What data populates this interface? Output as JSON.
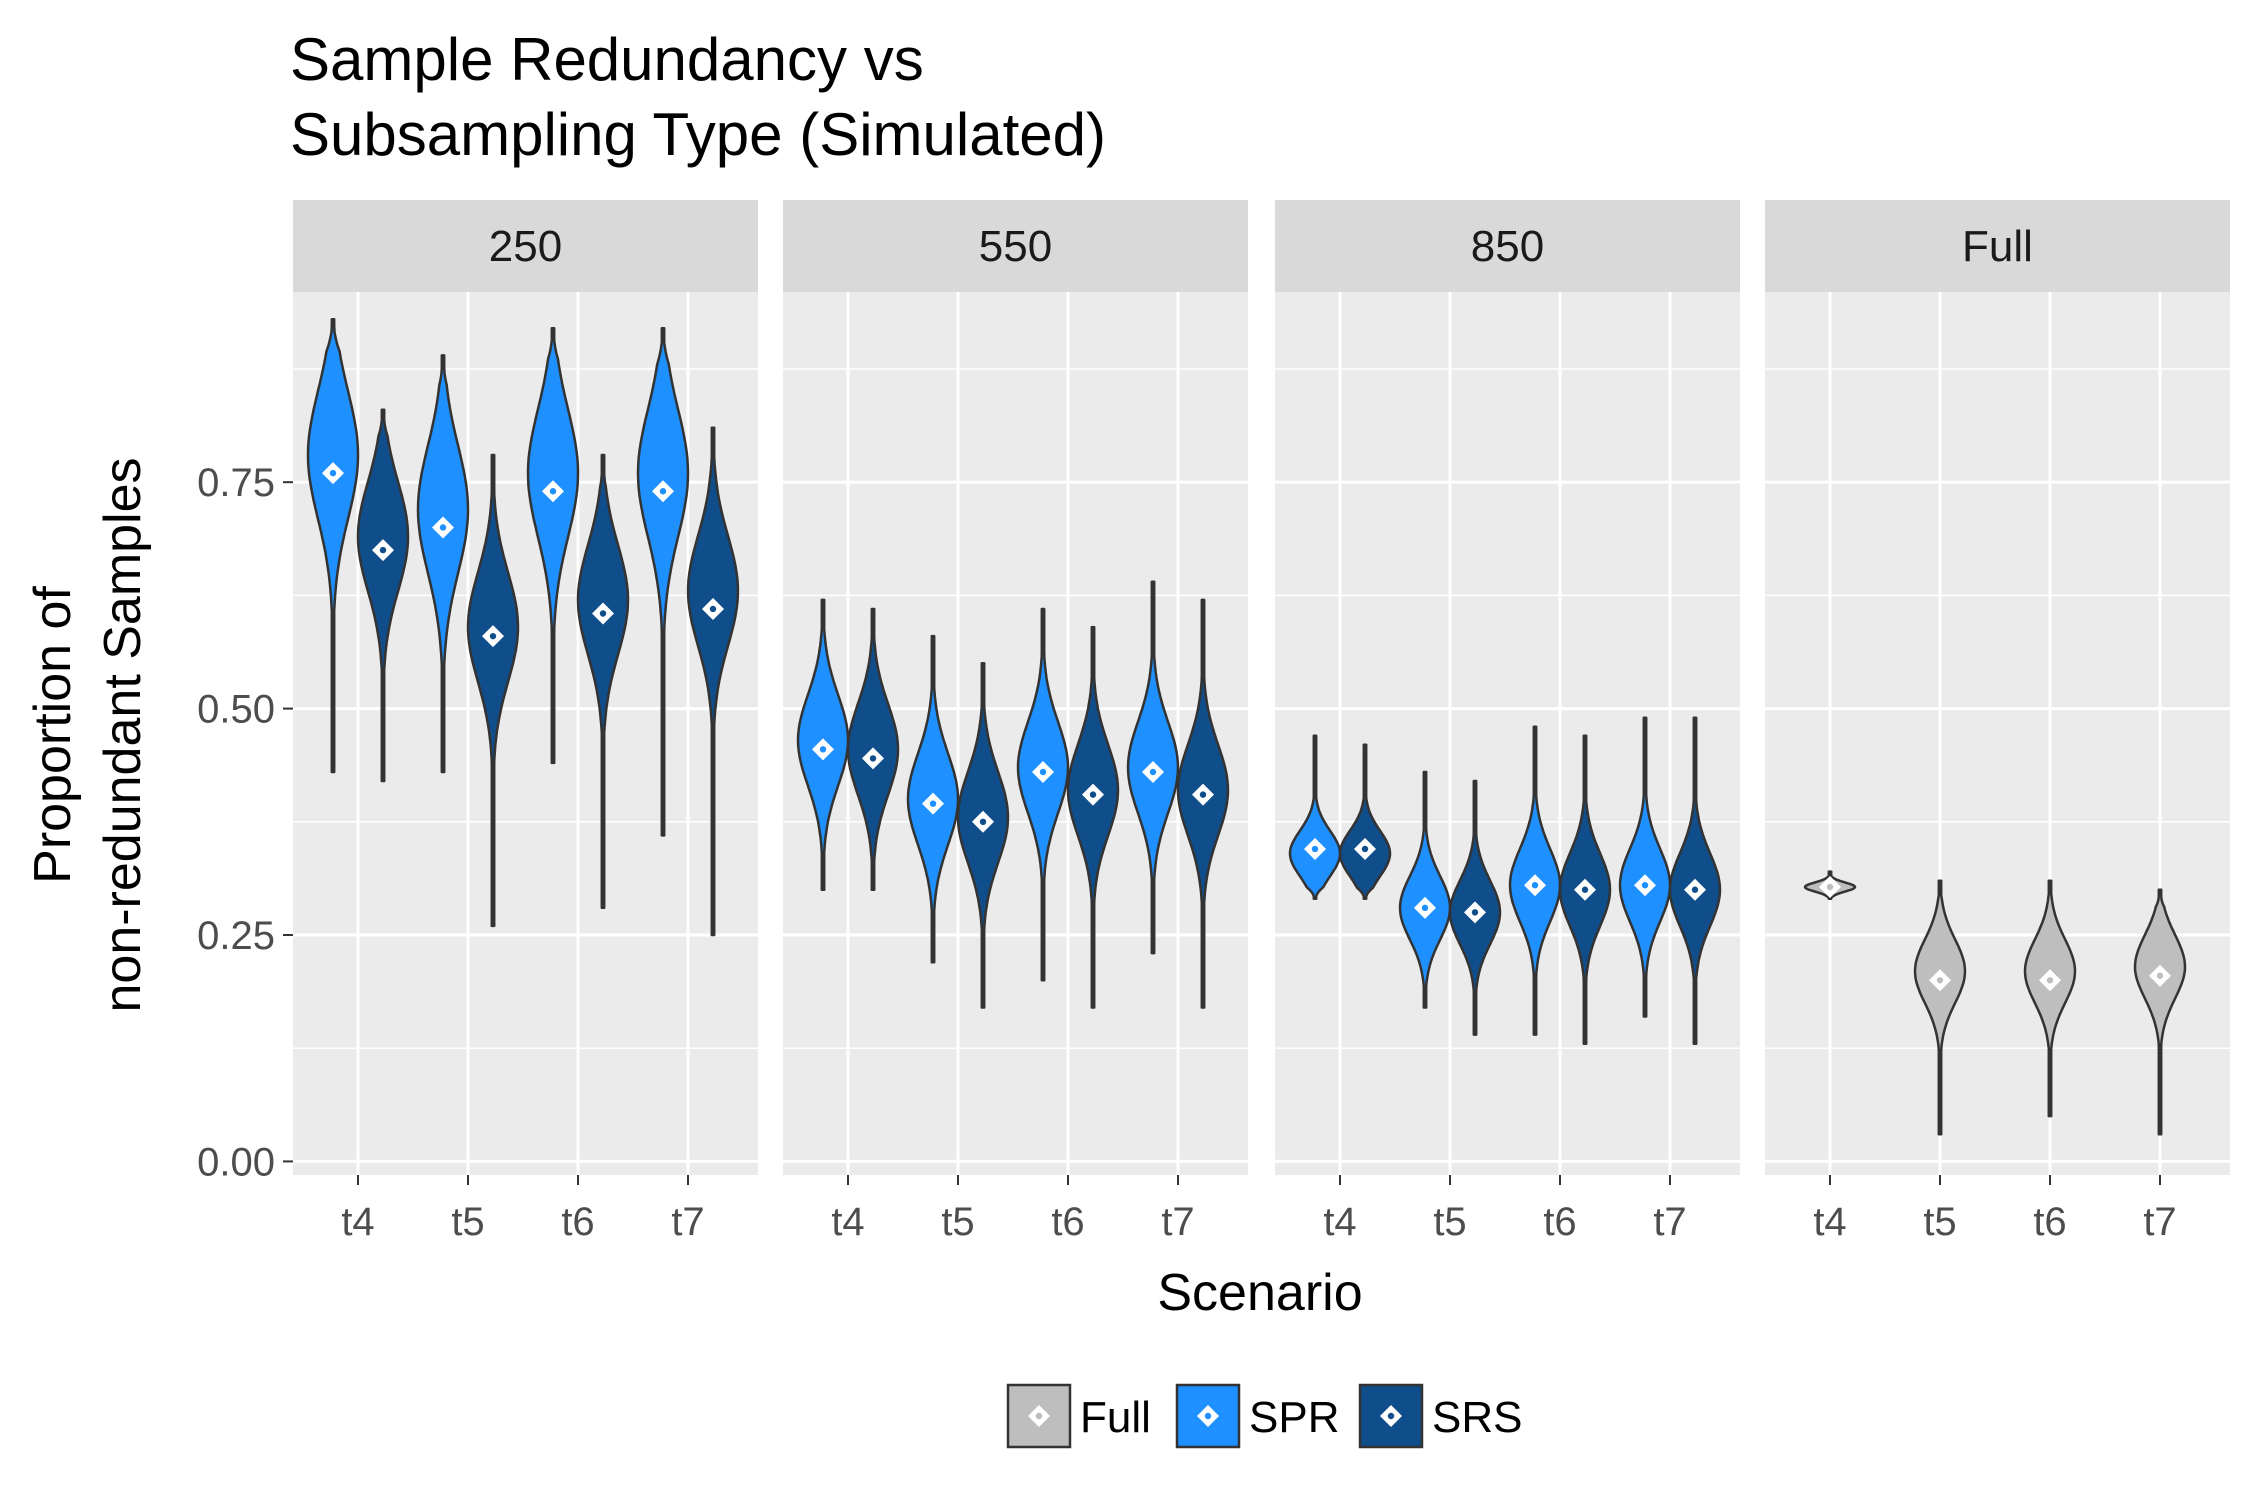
{
  "chart_data": {
    "type": "violin",
    "title_lines": [
      "Sample Redundancy vs",
      "Subsampling Type (Simulated)"
    ],
    "xlabel": "Scenario",
    "ylabel_lines": [
      "Proportion of",
      "non-redundant Samples"
    ],
    "ylim": [
      -0.015,
      0.96
    ],
    "yticks": [
      0.0,
      0.25,
      0.5,
      0.75
    ],
    "ytick_labels": [
      "0.00",
      "0.25",
      "0.50",
      "0.75"
    ],
    "categories": [
      "t4",
      "t5",
      "t6",
      "t7"
    ],
    "facets": [
      "250",
      "550",
      "850",
      "Full"
    ],
    "legend": {
      "entries": [
        "Full",
        "SPR",
        "SRS"
      ],
      "colors": {
        "Full": "#bebebe",
        "SPR": "#1e90ff",
        "SRS": "#104e8b"
      },
      "position": "bottom"
    },
    "panel_bg": "#ebebeb",
    "strip_bg": "#d9d9d9",
    "series": [
      {
        "facet": "250",
        "category": "t4",
        "group": "SPR",
        "mean": 0.76,
        "min": 0.43,
        "max": 0.93,
        "median": 0.78,
        "spread": 0.07
      },
      {
        "facet": "250",
        "category": "t4",
        "group": "SRS",
        "mean": 0.675,
        "min": 0.42,
        "max": 0.83,
        "median": 0.69,
        "spread": 0.06
      },
      {
        "facet": "250",
        "category": "t5",
        "group": "SPR",
        "mean": 0.7,
        "min": 0.43,
        "max": 0.89,
        "median": 0.72,
        "spread": 0.07
      },
      {
        "facet": "250",
        "category": "t5",
        "group": "SRS",
        "mean": 0.58,
        "min": 0.26,
        "max": 0.78,
        "median": 0.59,
        "spread": 0.06
      },
      {
        "facet": "250",
        "category": "t6",
        "group": "SPR",
        "mean": 0.74,
        "min": 0.44,
        "max": 0.92,
        "median": 0.76,
        "spread": 0.07
      },
      {
        "facet": "250",
        "category": "t6",
        "group": "SRS",
        "mean": 0.605,
        "min": 0.28,
        "max": 0.78,
        "median": 0.62,
        "spread": 0.06
      },
      {
        "facet": "250",
        "category": "t7",
        "group": "SPR",
        "mean": 0.74,
        "min": 0.36,
        "max": 0.92,
        "median": 0.76,
        "spread": 0.07
      },
      {
        "facet": "250",
        "category": "t7",
        "group": "SRS",
        "mean": 0.61,
        "min": 0.25,
        "max": 0.81,
        "median": 0.63,
        "spread": 0.06
      },
      {
        "facet": "550",
        "category": "t4",
        "group": "SPR",
        "mean": 0.455,
        "min": 0.3,
        "max": 0.62,
        "median": 0.465,
        "spread": 0.05
      },
      {
        "facet": "550",
        "category": "t4",
        "group": "SRS",
        "mean": 0.445,
        "min": 0.3,
        "max": 0.61,
        "median": 0.455,
        "spread": 0.05
      },
      {
        "facet": "550",
        "category": "t5",
        "group": "SPR",
        "mean": 0.395,
        "min": 0.22,
        "max": 0.58,
        "median": 0.4,
        "spread": 0.05
      },
      {
        "facet": "550",
        "category": "t5",
        "group": "SRS",
        "mean": 0.375,
        "min": 0.17,
        "max": 0.55,
        "median": 0.38,
        "spread": 0.05
      },
      {
        "facet": "550",
        "category": "t6",
        "group": "SPR",
        "mean": 0.43,
        "min": 0.2,
        "max": 0.61,
        "median": 0.435,
        "spread": 0.05
      },
      {
        "facet": "550",
        "category": "t6",
        "group": "SRS",
        "mean": 0.405,
        "min": 0.17,
        "max": 0.59,
        "median": 0.41,
        "spread": 0.05
      },
      {
        "facet": "550",
        "category": "t7",
        "group": "SPR",
        "mean": 0.43,
        "min": 0.23,
        "max": 0.64,
        "median": 0.435,
        "spread": 0.05
      },
      {
        "facet": "550",
        "category": "t7",
        "group": "SRS",
        "mean": 0.405,
        "min": 0.17,
        "max": 0.62,
        "median": 0.41,
        "spread": 0.05
      },
      {
        "facet": "850",
        "category": "t4",
        "group": "SPR",
        "mean": 0.345,
        "min": 0.29,
        "max": 0.47,
        "median": 0.34,
        "spread": 0.025
      },
      {
        "facet": "850",
        "category": "t4",
        "group": "SRS",
        "mean": 0.345,
        "min": 0.29,
        "max": 0.46,
        "median": 0.34,
        "spread": 0.025
      },
      {
        "facet": "850",
        "category": "t5",
        "group": "SPR",
        "mean": 0.28,
        "min": 0.17,
        "max": 0.43,
        "median": 0.28,
        "spread": 0.035
      },
      {
        "facet": "850",
        "category": "t5",
        "group": "SRS",
        "mean": 0.275,
        "min": 0.14,
        "max": 0.42,
        "median": 0.275,
        "spread": 0.035
      },
      {
        "facet": "850",
        "category": "t6",
        "group": "SPR",
        "mean": 0.305,
        "min": 0.14,
        "max": 0.48,
        "median": 0.305,
        "spread": 0.04
      },
      {
        "facet": "850",
        "category": "t6",
        "group": "SRS",
        "mean": 0.3,
        "min": 0.13,
        "max": 0.47,
        "median": 0.3,
        "spread": 0.04
      },
      {
        "facet": "850",
        "category": "t7",
        "group": "SPR",
        "mean": 0.305,
        "min": 0.16,
        "max": 0.49,
        "median": 0.305,
        "spread": 0.04
      },
      {
        "facet": "850",
        "category": "t7",
        "group": "SRS",
        "mean": 0.3,
        "min": 0.13,
        "max": 0.49,
        "median": 0.3,
        "spread": 0.04
      },
      {
        "facet": "Full",
        "category": "t4",
        "group": "Full",
        "mean": 0.303,
        "min": 0.29,
        "max": 0.32,
        "median": 0.303,
        "spread": 0.005
      },
      {
        "facet": "Full",
        "category": "t5",
        "group": "Full",
        "mean": 0.2,
        "min": 0.03,
        "max": 0.31,
        "median": 0.21,
        "spread": 0.035
      },
      {
        "facet": "Full",
        "category": "t6",
        "group": "Full",
        "mean": 0.2,
        "min": 0.05,
        "max": 0.31,
        "median": 0.21,
        "spread": 0.035
      },
      {
        "facet": "Full",
        "category": "t7",
        "group": "Full",
        "mean": 0.205,
        "min": 0.03,
        "max": 0.3,
        "median": 0.215,
        "spread": 0.035
      }
    ]
  }
}
